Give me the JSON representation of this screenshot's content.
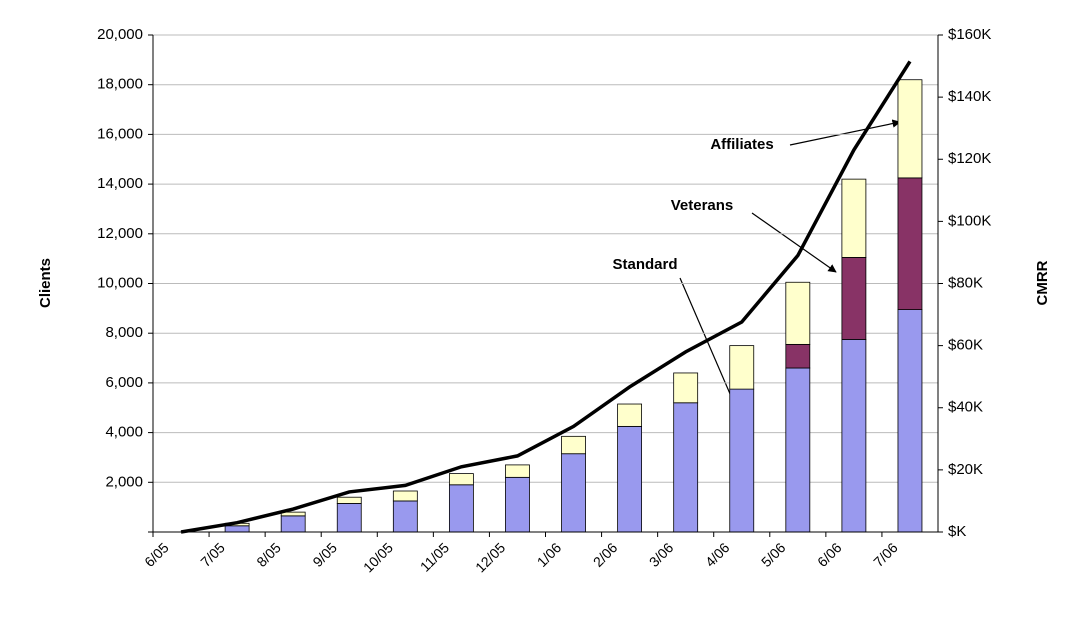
{
  "chart_data": {
    "type": "bar",
    "categories": [
      "6/05",
      "7/05",
      "8/05",
      "9/05",
      "10/05",
      "11/05",
      "12/05",
      "1/06",
      "2/06",
      "3/06",
      "4/06",
      "5/06",
      "6/06",
      "7/06"
    ],
    "stacked": true,
    "series": [
      {
        "name": "Standard",
        "color": "#9999ee",
        "values": [
          0,
          250,
          650,
          1150,
          1250,
          1900,
          2200,
          3150,
          4250,
          5200,
          5750,
          6600,
          7750,
          8950
        ]
      },
      {
        "name": "Veterans",
        "color": "#883366",
        "values": [
          0,
          0,
          0,
          0,
          0,
          0,
          0,
          0,
          0,
          0,
          0,
          950,
          3300,
          5300
        ]
      },
      {
        "name": "Affiliates",
        "color": "#ffffcc",
        "values": [
          0,
          100,
          150,
          250,
          400,
          450,
          500,
          700,
          900,
          1200,
          1750,
          2500,
          3150,
          3950
        ]
      },
      {
        "type": "line",
        "color": "#000000",
        "axis": "y2",
        "values": [
          0,
          3,
          7.4,
          12.9,
          15,
          21,
          24.5,
          34,
          46.7,
          58,
          67.6,
          89,
          123,
          151.5
        ]
      }
    ],
    "ylabel": "Clients",
    "y2label": "CMRR",
    "ylim": [
      0,
      20000
    ],
    "yticks": [
      {
        "value": 0,
        "label": ""
      },
      {
        "value": 2000,
        "label": "2,000"
      },
      {
        "value": 4000,
        "label": "4,000"
      },
      {
        "value": 6000,
        "label": "6,000"
      },
      {
        "value": 8000,
        "label": "8,000"
      },
      {
        "value": 10000,
        "label": "10,000"
      },
      {
        "value": 12000,
        "label": "12,000"
      },
      {
        "value": 14000,
        "label": "14,000"
      },
      {
        "value": 16000,
        "label": "16,000"
      },
      {
        "value": 18000,
        "label": "18,000"
      },
      {
        "value": 20000,
        "label": "20,000"
      }
    ],
    "y2lim": [
      0,
      160
    ],
    "y2ticks": [
      {
        "value": 0,
        "label": "$K"
      },
      {
        "value": 20,
        "label": "$20K"
      },
      {
        "value": 40,
        "label": "$40K"
      },
      {
        "value": 60,
        "label": "$60K"
      },
      {
        "value": 80,
        "label": "$80K"
      },
      {
        "value": 100,
        "label": "$100K"
      },
      {
        "value": 120,
        "label": "$120K"
      },
      {
        "value": 140,
        "label": "$140K"
      },
      {
        "value": 160,
        "label": "$160K"
      }
    ],
    "grid": true,
    "annotations": [
      "Affiliates",
      "Veterans",
      "Standard"
    ]
  }
}
